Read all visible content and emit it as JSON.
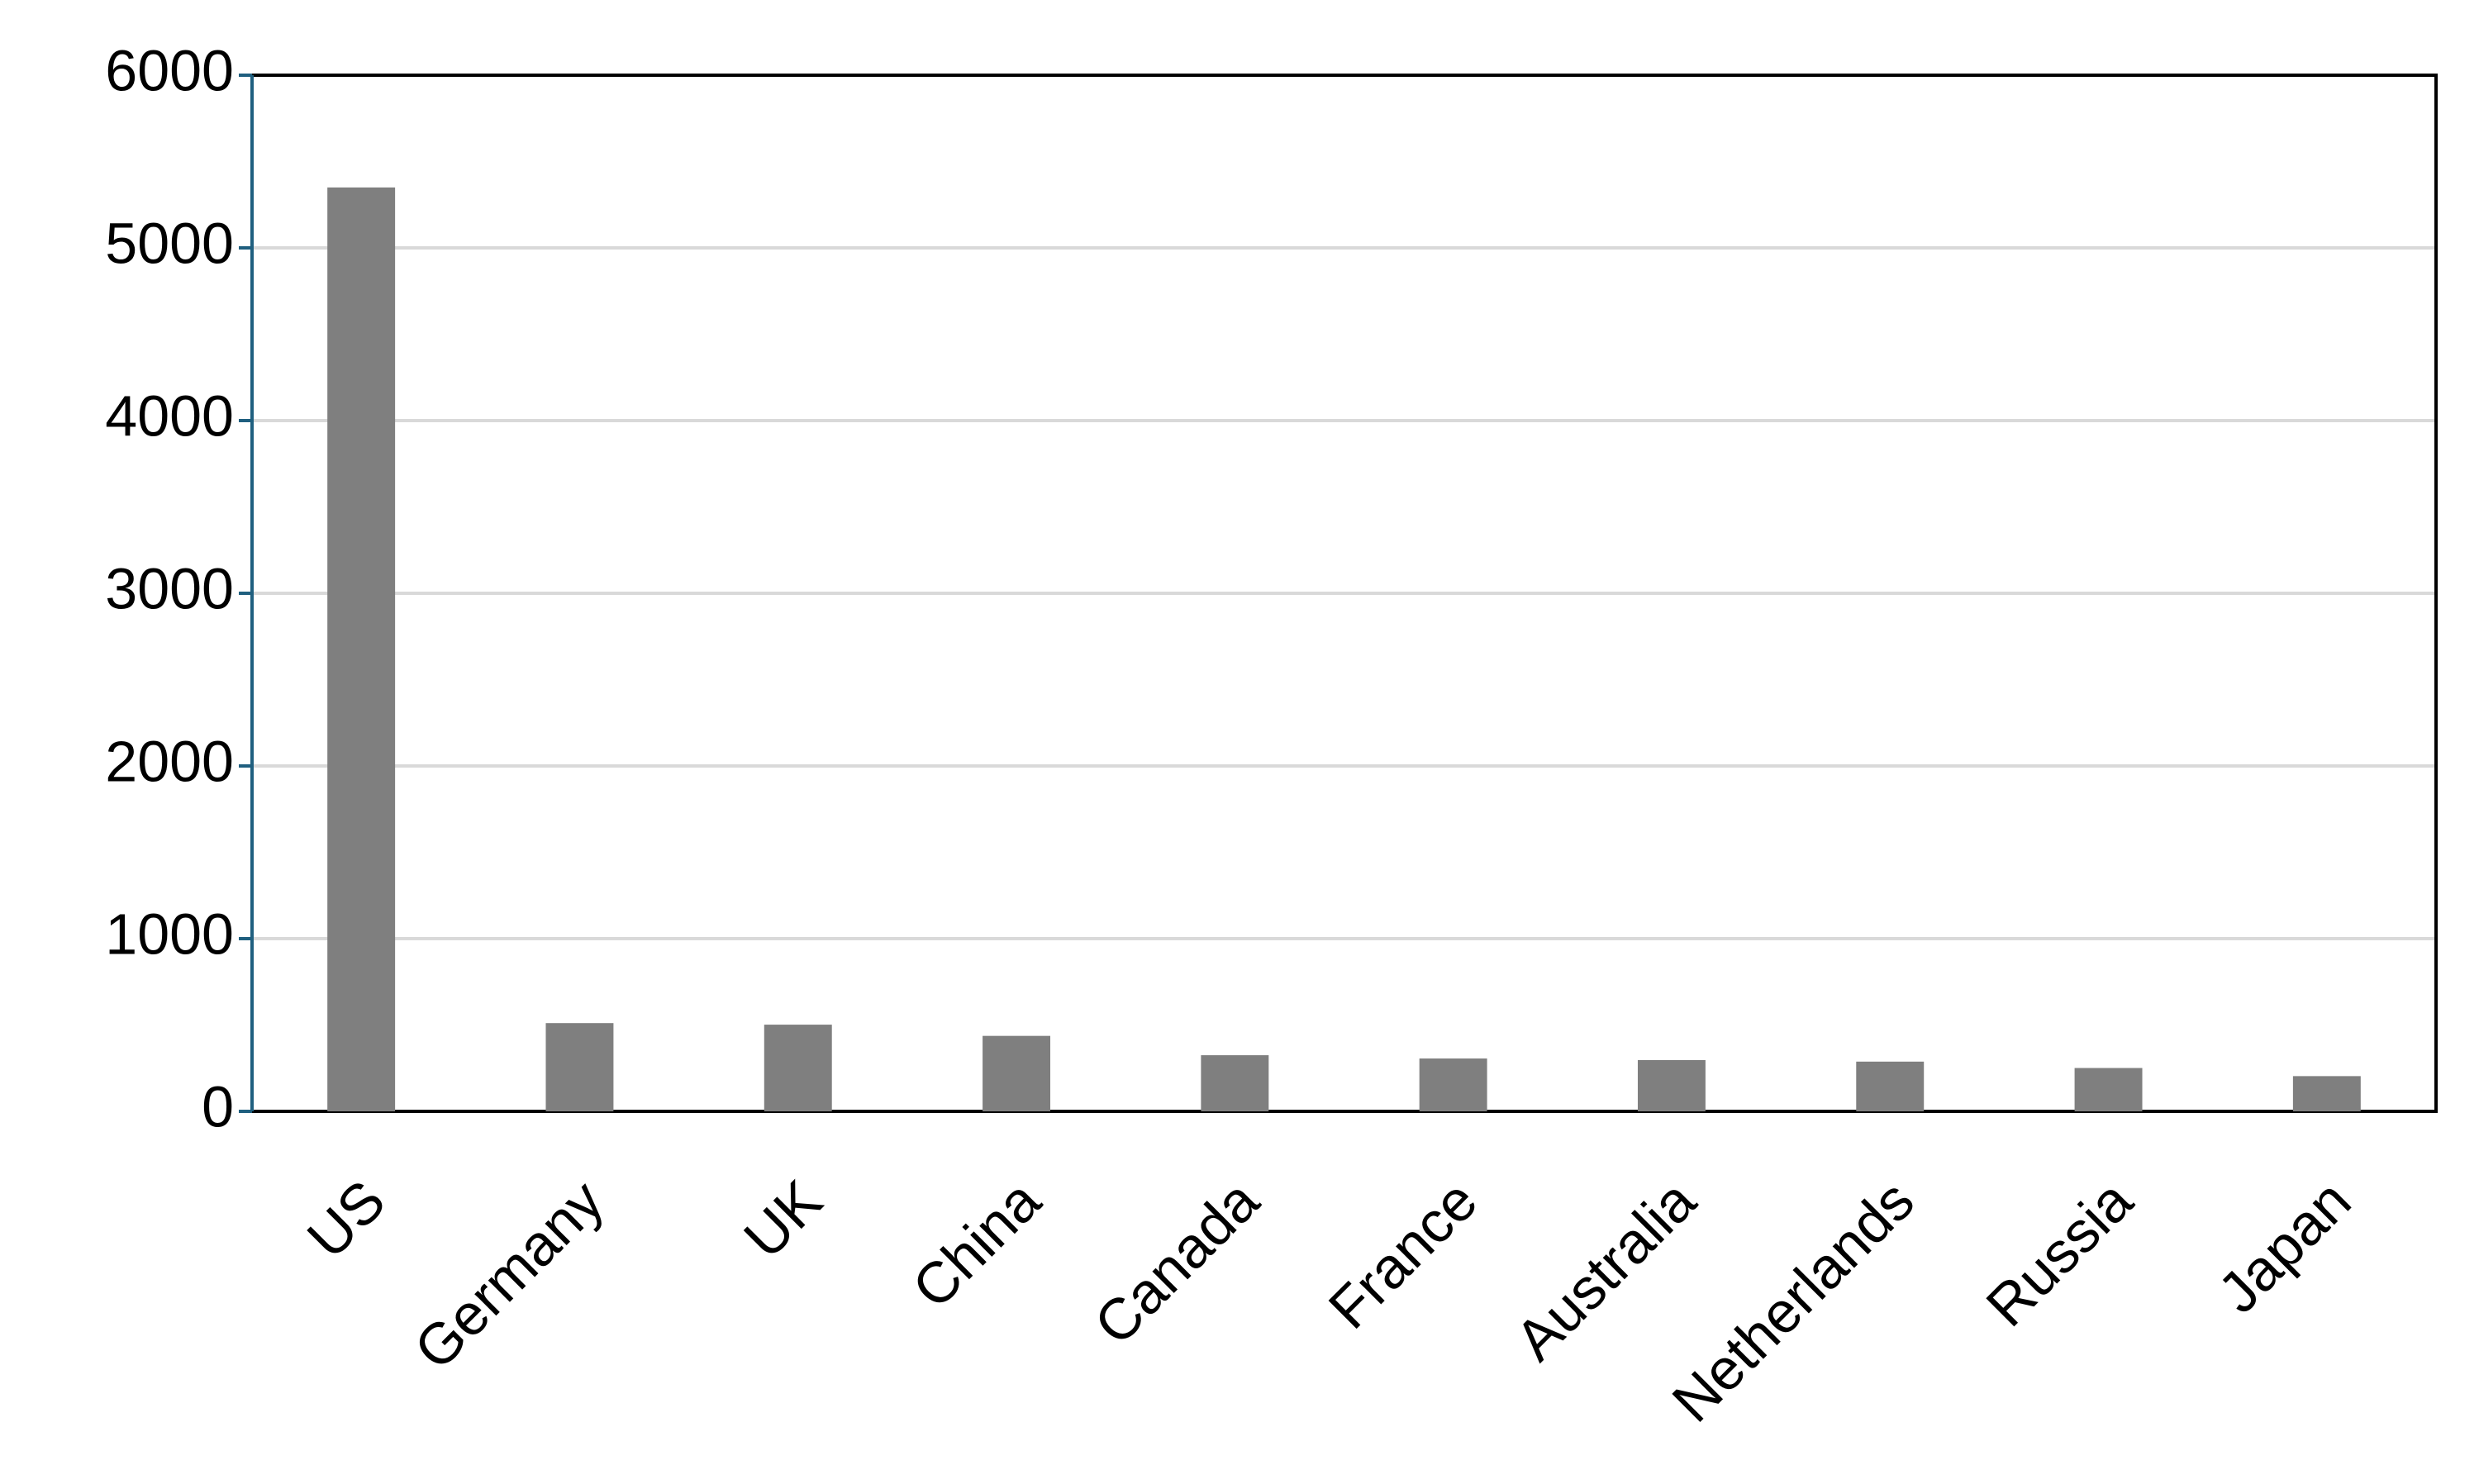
{
  "chart_data": {
    "type": "bar",
    "categories": [
      "US",
      "Germany",
      "UK",
      "China",
      "Canada",
      "France",
      "Australia",
      "Netherlands",
      "Russia",
      "Japan"
    ],
    "values": [
      5350,
      511,
      502,
      437,
      325,
      306,
      297,
      288,
      251,
      204
    ],
    "color": "#7f7f7f",
    "ylim": [
      0,
      6000
    ],
    "yticks": [
      0,
      1000,
      2000,
      3000,
      4000,
      5000,
      6000
    ],
    "grid": true
  }
}
